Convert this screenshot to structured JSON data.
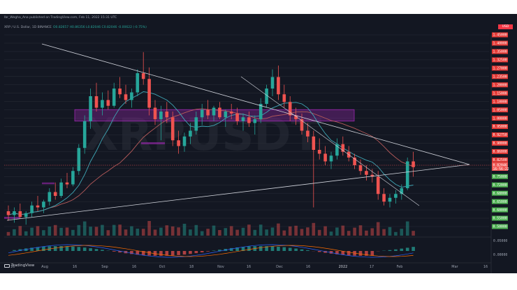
{
  "header": {
    "author_line": "Ibr_Wegha_Ana published on TradingView.com, Feb 11, 2022 15:31 UTC",
    "symbol_line": "XRP / U.S. Dollar, 1D BINANCE",
    "ohlc_line": "O0.82657 H0.86356 L0.82046 C0.82046 -0.00622 (-0.75%)"
  },
  "currency": "USD",
  "watermark": "XRPUSDT",
  "branding": "TradingView",
  "macd_axis": [
    "0.05000",
    "0.00000"
  ],
  "colors": {
    "background": "#131722",
    "up": "#26a69a",
    "down": "#ef5350",
    "ma_slow": "#b55a5a",
    "ma_fast": "#3fa6b5",
    "zone": "#9c27b0",
    "trendline": "#d1d4dc",
    "price_tag_red": "#e53935",
    "price_tag_green": "#4caf50"
  },
  "chart_data": {
    "type": "candlestick",
    "x_ticks": [
      "16",
      "Aug",
      "16",
      "Sep",
      "16",
      "Oct",
      "18",
      "Nov",
      "16",
      "Dec",
      "16",
      "2022",
      "17",
      "Feb",
      "Mar",
      "16"
    ],
    "y_ticks_red": [
      "1.45000",
      "1.40000",
      "1.35000",
      "1.32500",
      "1.27000",
      "1.23500",
      "1.20000",
      "1.15000",
      "1.10000",
      "1.05000",
      "1.00000",
      "0.95000",
      "0.92750",
      "0.90000",
      "0.86000",
      "0.82500"
    ],
    "y_ticks_green": [
      "0.80000",
      "0.75000",
      "0.72000",
      "0.68000",
      "0.65000",
      "0.60000",
      "0.55000",
      "0.50000"
    ],
    "current_price": "0.82046",
    "countdown": "16:56:22",
    "ylim": [
      0.5,
      1.5
    ],
    "candles": [
      {
        "o": 0.58,
        "h": 0.61,
        "l": 0.53,
        "c": 0.56
      },
      {
        "o": 0.56,
        "h": 0.6,
        "l": 0.52,
        "c": 0.58
      },
      {
        "o": 0.58,
        "h": 0.62,
        "l": 0.54,
        "c": 0.55
      },
      {
        "o": 0.55,
        "h": 0.58,
        "l": 0.51,
        "c": 0.57
      },
      {
        "o": 0.57,
        "h": 0.63,
        "l": 0.55,
        "c": 0.61
      },
      {
        "o": 0.61,
        "h": 0.66,
        "l": 0.58,
        "c": 0.6
      },
      {
        "o": 0.6,
        "h": 0.64,
        "l": 0.57,
        "c": 0.63
      },
      {
        "o": 0.63,
        "h": 0.7,
        "l": 0.61,
        "c": 0.68
      },
      {
        "o": 0.68,
        "h": 0.73,
        "l": 0.64,
        "c": 0.66
      },
      {
        "o": 0.66,
        "h": 0.75,
        "l": 0.65,
        "c": 0.73
      },
      {
        "o": 0.73,
        "h": 0.78,
        "l": 0.7,
        "c": 0.72
      },
      {
        "o": 0.72,
        "h": 0.81,
        "l": 0.71,
        "c": 0.79
      },
      {
        "o": 0.79,
        "h": 0.93,
        "l": 0.77,
        "c": 0.91
      },
      {
        "o": 0.91,
        "h": 1.08,
        "l": 0.88,
        "c": 1.05
      },
      {
        "o": 1.05,
        "h": 1.22,
        "l": 1.01,
        "c": 1.18
      },
      {
        "o": 1.18,
        "h": 1.25,
        "l": 1.1,
        "c": 1.12
      },
      {
        "o": 1.12,
        "h": 1.2,
        "l": 1.08,
        "c": 1.16
      },
      {
        "o": 1.16,
        "h": 1.21,
        "l": 1.11,
        "c": 1.13
      },
      {
        "o": 1.13,
        "h": 1.25,
        "l": 1.12,
        "c": 1.22
      },
      {
        "o": 1.22,
        "h": 1.28,
        "l": 1.17,
        "c": 1.19
      },
      {
        "o": 1.19,
        "h": 1.24,
        "l": 1.14,
        "c": 1.16
      },
      {
        "o": 1.16,
        "h": 1.22,
        "l": 1.12,
        "c": 1.2
      },
      {
        "o": 1.2,
        "h": 1.32,
        "l": 1.18,
        "c": 1.3
      },
      {
        "o": 1.3,
        "h": 1.41,
        "l": 1.24,
        "c": 1.27
      },
      {
        "o": 1.27,
        "h": 1.33,
        "l": 1.08,
        "c": 1.12
      },
      {
        "o": 1.12,
        "h": 1.16,
        "l": 1.03,
        "c": 1.06
      },
      {
        "o": 1.06,
        "h": 1.13,
        "l": 0.95,
        "c": 1.1
      },
      {
        "o": 1.1,
        "h": 1.15,
        "l": 1.04,
        "c": 1.07
      },
      {
        "o": 1.07,
        "h": 1.1,
        "l": 0.92,
        "c": 0.95
      },
      {
        "o": 0.95,
        "h": 1.0,
        "l": 0.88,
        "c": 0.92
      },
      {
        "o": 0.92,
        "h": 0.99,
        "l": 0.89,
        "c": 0.97
      },
      {
        "o": 0.97,
        "h": 1.04,
        "l": 0.93,
        "c": 1.0
      },
      {
        "o": 1.0,
        "h": 1.1,
        "l": 0.98,
        "c": 1.07
      },
      {
        "o": 1.07,
        "h": 1.14,
        "l": 1.03,
        "c": 1.11
      },
      {
        "o": 1.11,
        "h": 1.16,
        "l": 1.06,
        "c": 1.08
      },
      {
        "o": 1.08,
        "h": 1.13,
        "l": 1.05,
        "c": 1.12
      },
      {
        "o": 1.12,
        "h": 1.15,
        "l": 1.06,
        "c": 1.07
      },
      {
        "o": 1.07,
        "h": 1.11,
        "l": 1.02,
        "c": 1.1
      },
      {
        "o": 1.1,
        "h": 1.14,
        "l": 1.06,
        "c": 1.09
      },
      {
        "o": 1.09,
        "h": 1.12,
        "l": 1.03,
        "c": 1.05
      },
      {
        "o": 1.05,
        "h": 1.09,
        "l": 1.0,
        "c": 1.07
      },
      {
        "o": 1.07,
        "h": 1.1,
        "l": 1.02,
        "c": 1.04
      },
      {
        "o": 1.04,
        "h": 1.08,
        "l": 0.98,
        "c": 1.06
      },
      {
        "o": 1.06,
        "h": 1.17,
        "l": 1.04,
        "c": 1.14
      },
      {
        "o": 1.14,
        "h": 1.24,
        "l": 1.12,
        "c": 1.22
      },
      {
        "o": 1.22,
        "h": 1.32,
        "l": 1.18,
        "c": 1.28
      },
      {
        "o": 1.28,
        "h": 1.34,
        "l": 1.16,
        "c": 1.19
      },
      {
        "o": 1.19,
        "h": 1.24,
        "l": 1.12,
        "c": 1.15
      },
      {
        "o": 1.15,
        "h": 1.18,
        "l": 1.05,
        "c": 1.08
      },
      {
        "o": 1.08,
        "h": 1.12,
        "l": 1.03,
        "c": 1.06
      },
      {
        "o": 1.06,
        "h": 1.09,
        "l": 0.98,
        "c": 1.0
      },
      {
        "o": 1.0,
        "h": 1.04,
        "l": 0.94,
        "c": 0.97
      },
      {
        "o": 0.97,
        "h": 1.0,
        "l": 0.6,
        "c": 0.9
      },
      {
        "o": 0.9,
        "h": 0.96,
        "l": 0.85,
        "c": 0.88
      },
      {
        "o": 0.88,
        "h": 0.92,
        "l": 0.82,
        "c": 0.84
      },
      {
        "o": 0.84,
        "h": 0.89,
        "l": 0.8,
        "c": 0.87
      },
      {
        "o": 0.87,
        "h": 0.96,
        "l": 0.85,
        "c": 0.93
      },
      {
        "o": 0.93,
        "h": 0.97,
        "l": 0.87,
        "c": 0.89
      },
      {
        "o": 0.89,
        "h": 0.92,
        "l": 0.84,
        "c": 0.86
      },
      {
        "o": 0.86,
        "h": 0.88,
        "l": 0.8,
        "c": 0.82
      },
      {
        "o": 0.82,
        "h": 0.85,
        "l": 0.77,
        "c": 0.79
      },
      {
        "o": 0.79,
        "h": 0.82,
        "l": 0.74,
        "c": 0.77
      },
      {
        "o": 0.77,
        "h": 0.8,
        "l": 0.73,
        "c": 0.76
      },
      {
        "o": 0.76,
        "h": 0.79,
        "l": 0.64,
        "c": 0.67
      },
      {
        "o": 0.67,
        "h": 0.7,
        "l": 0.61,
        "c": 0.63
      },
      {
        "o": 0.63,
        "h": 0.67,
        "l": 0.6,
        "c": 0.65
      },
      {
        "o": 0.65,
        "h": 0.69,
        "l": 0.62,
        "c": 0.67
      },
      {
        "o": 0.67,
        "h": 0.72,
        "l": 0.64,
        "c": 0.7
      },
      {
        "o": 0.7,
        "h": 0.86,
        "l": 0.69,
        "c": 0.84
      },
      {
        "o": 0.84,
        "h": 0.89,
        "l": 0.76,
        "c": 0.81
      }
    ]
  }
}
